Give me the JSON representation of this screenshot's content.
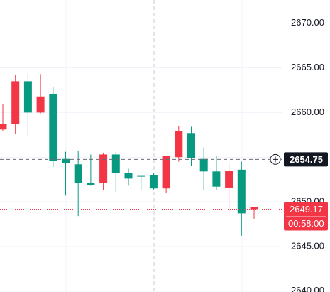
{
  "chart_data": {
    "type": "candlestick",
    "series": [
      {
        "up_color": "#089981",
        "down_color": "#f23645",
        "open": [
          2658.7,
          2663.5,
          2660.0,
          2661.8,
          2654.6,
          2654.3,
          2652.1,
          2651.9,
          2655.3,
          2653.2,
          2652.6,
          2652.9,
          2651.5,
          2655.1,
          2657.9,
          2654.9,
          2653.4,
          2651.7,
          2653.5,
          2648.7,
          2649.4
        ],
        "high": [
          2660.9,
          2664.2,
          2664.3,
          2664.3,
          2662.9,
          2655.6,
          2655.7,
          2655.3,
          2655.5,
          2655.6,
          2653.7,
          2652.9,
          2653.2,
          2655.1,
          2658.5,
          2658.4,
          2656.1,
          2655.1,
          2654.4,
          2654.5,
          2649.4
        ],
        "low": [
          2657.9,
          2657.6,
          2657.3,
          2659.9,
          2653.9,
          2650.7,
          2648.4,
          2651.8,
          2651.3,
          2651.1,
          2651.8,
          2651.3,
          2651.3,
          2651.0,
          2654.5,
          2654.0,
          2651.3,
          2651.3,
          2649.0,
          2646.2,
          2648.1
        ],
        "close": [
          2658.1,
          2658.7,
          2663.5,
          2660.0,
          2662.1,
          2654.8,
          2654.2,
          2652.1,
          2652.1,
          2655.3,
          2653.2,
          2652.9,
          2653.0,
          2651.5,
          2655.0,
          2657.7,
          2654.8,
          2653.4,
          2651.6,
          2653.6,
          2649.17
        ]
      }
    ],
    "ylim": [
      2639.9,
      2672.6
    ],
    "yticks": [
      {
        "value": 2640,
        "label": "2640.00"
      },
      {
        "value": 2645,
        "label": "2645.00"
      },
      {
        "value": 2650,
        "label": "2650.00"
      },
      {
        "value": 2655,
        "label": "2655.00"
      },
      {
        "value": 2660,
        "label": "2660.00"
      },
      {
        "value": 2665,
        "label": "2665.00"
      },
      {
        "value": 2670,
        "label": "2670.00"
      }
    ],
    "grid": true,
    "crosshair": 2654.75,
    "last_price": 2649.17,
    "countdown": "00:58:00"
  }
}
